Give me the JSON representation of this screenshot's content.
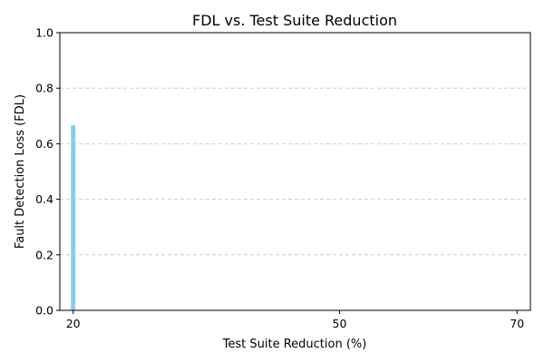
{
  "chart_data": {
    "type": "bar",
    "title": "FDL vs. Test Suite Reduction",
    "xlabel": "Test Suite Reduction (%)",
    "ylabel": "Fault Detection Loss (FDL)",
    "x": [
      20
    ],
    "values": [
      0.667
    ],
    "bar_color": "#87ceeb",
    "xlim": [
      18.5,
      71.5
    ],
    "ylim": [
      0,
      1.0
    ],
    "xticks": [
      20,
      50,
      70
    ],
    "yticks": [
      0.0,
      0.2,
      0.4,
      0.6,
      0.8,
      1.0
    ],
    "ytick_labels": [
      "0.0",
      "0.2",
      "0.4",
      "0.6",
      "0.8",
      "1.0"
    ],
    "grid": "y-dashed",
    "legend": "none"
  }
}
